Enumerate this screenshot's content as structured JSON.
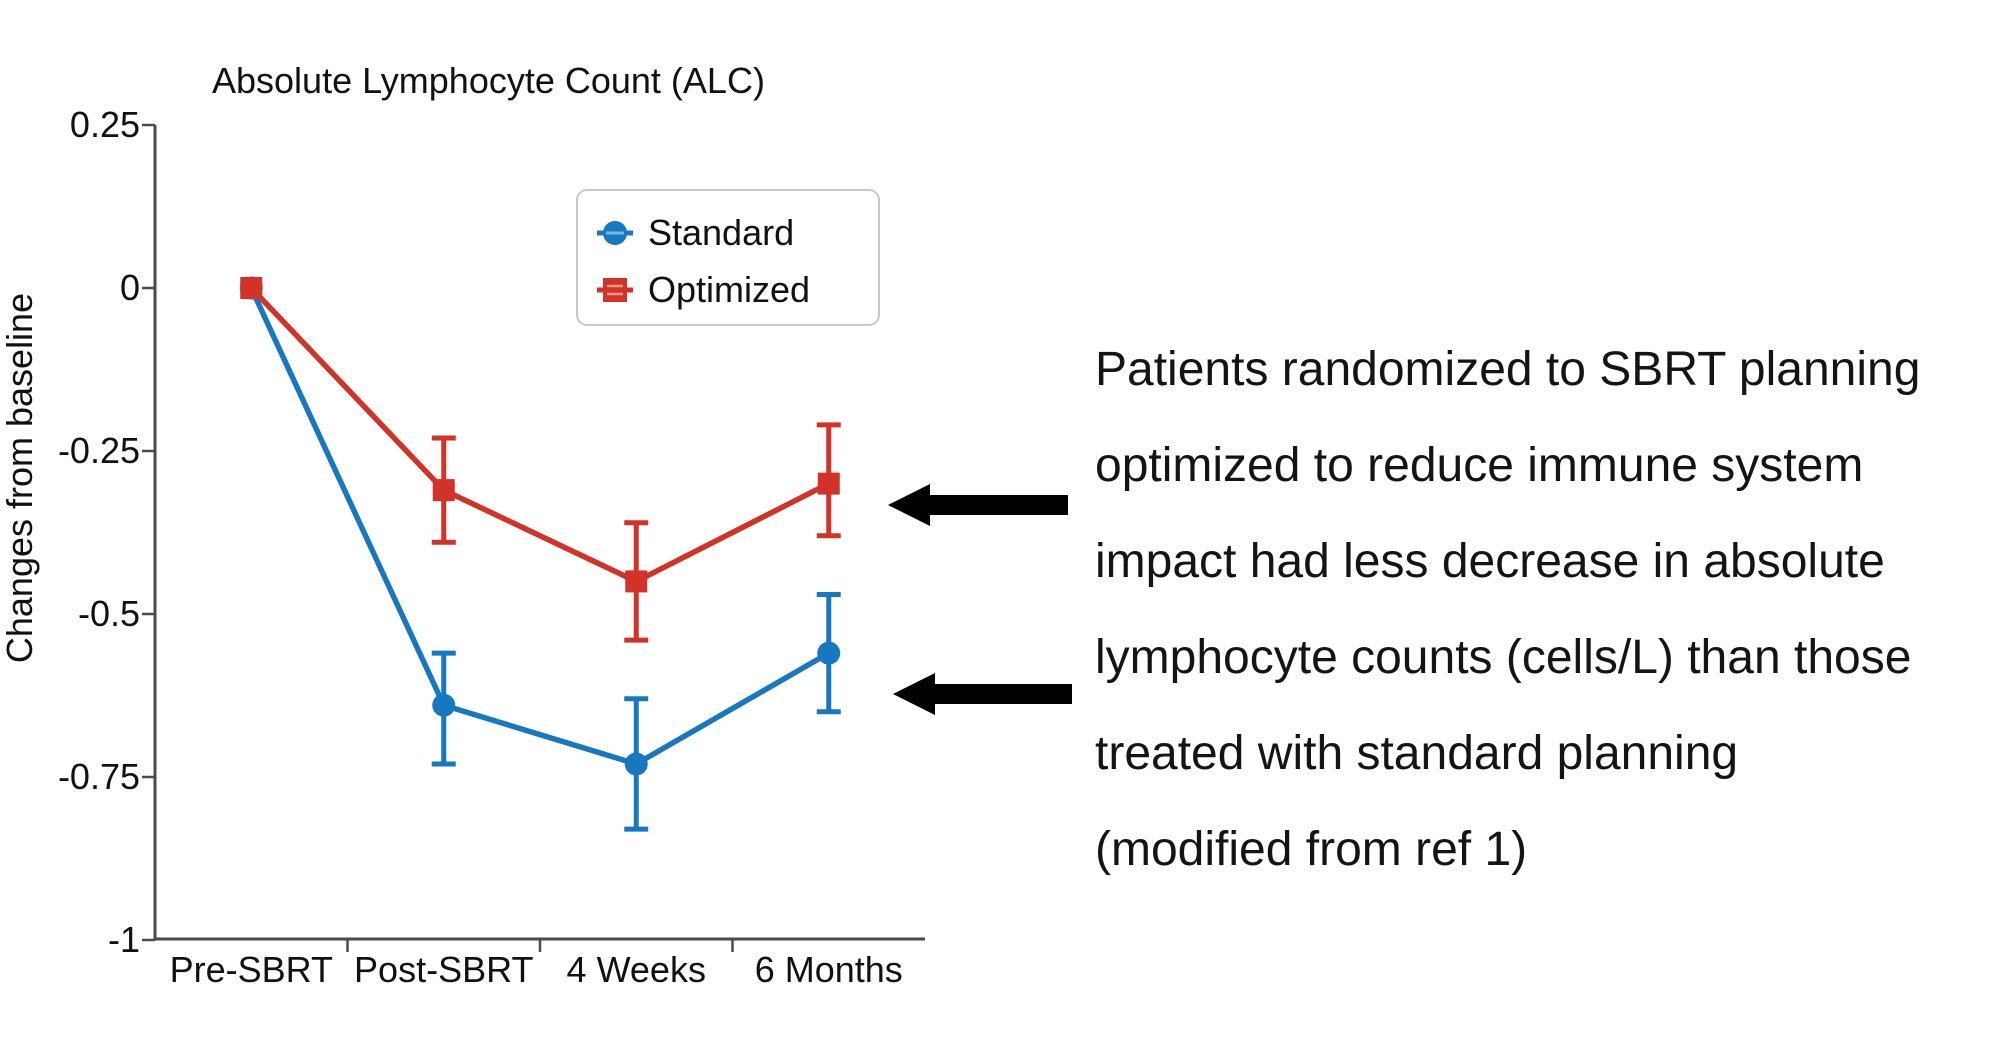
{
  "page": {
    "background": "#ffffff"
  },
  "chart_data": {
    "type": "line",
    "title": "Absolute Lymphocyte Count (ALC)",
    "ylabel": "Changes from baseline",
    "xlabel": "",
    "categories": [
      "Pre-SBRT",
      "Post-SBRT",
      "4 Weeks",
      "6 Months"
    ],
    "ylim": [
      -1,
      0.25
    ],
    "yticks": [
      0.25,
      0,
      -0.25,
      -0.5,
      -0.75,
      -1
    ],
    "ytick_labels": [
      "0.25",
      "0",
      "-0.25",
      "-0.5",
      "-0.75",
      "-1"
    ],
    "grid": false,
    "legend_position": "inside-upper-center",
    "error_bars": true,
    "series": [
      {
        "name": "Standard",
        "color": "#1878bf",
        "marker": "circle",
        "values": [
          0,
          -0.64,
          -0.73,
          -0.56
        ],
        "error_low": [
          null,
          -0.73,
          -0.83,
          -0.65
        ],
        "error_high": [
          null,
          -0.56,
          -0.63,
          -0.47
        ]
      },
      {
        "name": "Optimized",
        "color": "#d23228",
        "marker": "square",
        "values": [
          0,
          -0.31,
          -0.45,
          -0.3
        ],
        "error_low": [
          null,
          -0.39,
          -0.54,
          -0.38
        ],
        "error_high": [
          null,
          -0.23,
          -0.36,
          -0.21
        ]
      }
    ]
  },
  "annotation": {
    "lines": [
      "Patients randomized to SBRT planning",
      "optimized to reduce immune system",
      "impact had less decrease in absolute",
      "lymphocyte counts (cells/L) than those",
      "treated with standard planning",
      "(modified from ref 1)"
    ],
    "arrows": [
      {
        "name": "arrow-to-optimized-line",
        "direction": "left",
        "color": "#000000"
      },
      {
        "name": "arrow-to-standard-line",
        "direction": "left",
        "color": "#000000"
      }
    ],
    "text_color": "#141414"
  },
  "colors": {
    "axis": "#4a4a4a",
    "tick_text": "#111111",
    "legend_border": "#c9c9c9",
    "legend_fill": "#ffffff"
  }
}
